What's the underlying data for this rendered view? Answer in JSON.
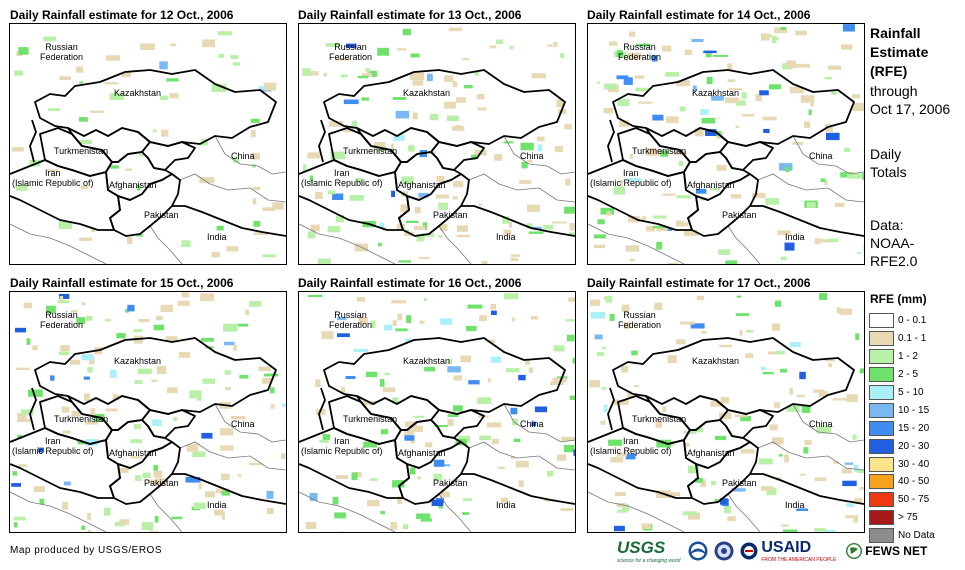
{
  "panels": [
    {
      "title": "Daily Rainfall estimate for 12 Oct., 2006",
      "intensity": 0.15
    },
    {
      "title": "Daily Rainfall estimate for 13 Oct., 2006",
      "intensity": 0.55
    },
    {
      "title": "Daily Rainfall estimate for 14 Oct., 2006",
      "intensity": 0.6
    },
    {
      "title": "Daily Rainfall estimate for 15 Oct., 2006",
      "intensity": 0.6
    },
    {
      "title": "Daily Rainfall estimate for 16 Oct., 2006",
      "intensity": 0.55
    },
    {
      "title": "Daily Rainfall estimate for 17 Oct., 2006",
      "intensity": 0.55
    }
  ],
  "map_labels": {
    "russia": "Russian\nFederation",
    "kazakhstan": "Kazakhstan",
    "turkmenistan": "Turkmenistan",
    "iran": "Iran\n(Islamic Republic of)",
    "afghanistan": "Afghanistan",
    "pakistan": "Pakistan",
    "india": "India",
    "china": "China"
  },
  "sidebar": {
    "title": "Rainfall\nEstimate\n(RFE)",
    "through": "through\nOct 17, 2006",
    "totals": "Daily\nTotals",
    "source": "Data:\nNOAA-\nRFE2.0"
  },
  "legend": {
    "title": "RFE (mm)",
    "items": [
      {
        "label": "0 - 0.1",
        "color": "#ffffff"
      },
      {
        "label": "0.1 - 1",
        "color": "#e8d9b5"
      },
      {
        "label": "1 - 2",
        "color": "#b8f0a8"
      },
      {
        "label": "2 - 5",
        "color": "#6ee26a"
      },
      {
        "label": "5 - 10",
        "color": "#aaf0f8"
      },
      {
        "label": "10 - 15",
        "color": "#7ab8f4"
      },
      {
        "label": "15 - 20",
        "color": "#3f8df0"
      },
      {
        "label": "20 - 30",
        "color": "#1f5fe0"
      },
      {
        "label": "30 - 40",
        "color": "#fde48a"
      },
      {
        "label": "40 - 50",
        "color": "#f5a21c"
      },
      {
        "label": "50 - 75",
        "color": "#ee3a12"
      },
      {
        "label": "> 75",
        "color": "#a61a1a"
      },
      {
        "label": "No Data",
        "color": "#8c8c8c"
      }
    ]
  },
  "credit": "Map produced by USGS/EROS",
  "logos": {
    "usgs": "USGS",
    "usgs_tag": "science for a changing world",
    "usaid": "USAID",
    "usaid_tag": "FROM THE AMERICAN PEOPLE",
    "fews": "FEWS NET"
  }
}
